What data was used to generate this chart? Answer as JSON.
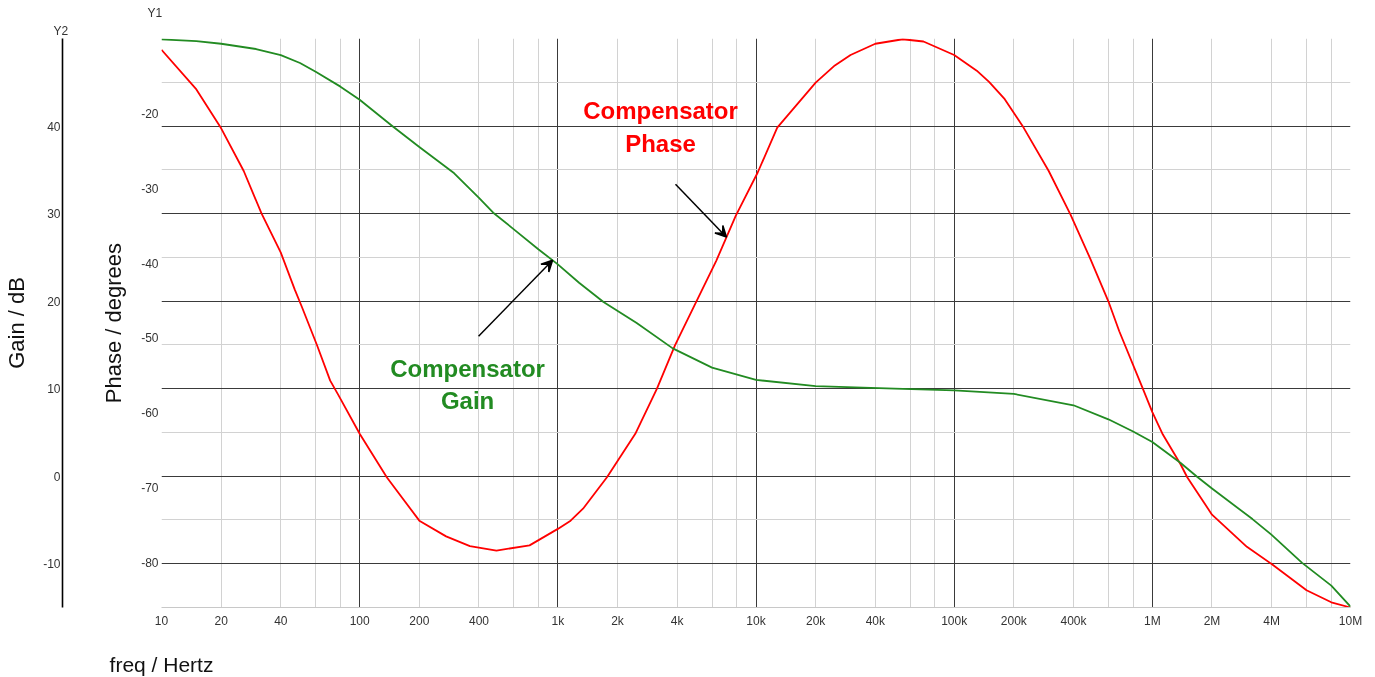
{
  "chart_data": {
    "type": "line",
    "xlabel": "freq / Hertz",
    "ylabel": "Phase / degrees",
    "y2label": "Gain / dB",
    "log": "x",
    "grid": true,
    "xlim": [
      10,
      10000000
    ],
    "xticks": [
      10,
      20,
      40,
      {
        "value": 60,
        "label": null
      },
      {
        "value": 80,
        "label": null
      },
      100,
      200,
      400,
      {
        "value": 600,
        "label": null
      },
      {
        "value": 800,
        "label": null
      },
      {
        "value": 1000,
        "label": "1k"
      },
      {
        "value": 2000,
        "label": "2k"
      },
      {
        "value": 4000,
        "label": "4k"
      },
      {
        "value": 6000,
        "label": null
      },
      {
        "value": 8000,
        "label": null
      },
      {
        "value": 10000,
        "label": "10k"
      },
      {
        "value": 20000,
        "label": "20k"
      },
      {
        "value": 40000,
        "label": "40k"
      },
      {
        "value": 60000,
        "label": null
      },
      {
        "value": 80000,
        "label": null
      },
      {
        "value": 100000,
        "label": "100k"
      },
      {
        "value": 200000,
        "label": "200k"
      },
      {
        "value": 400000,
        "label": "400k"
      },
      {
        "value": 600000,
        "label": null
      },
      {
        "value": 800000,
        "label": null
      },
      {
        "value": 1000000,
        "label": "1M"
      },
      {
        "value": 2000000,
        "label": "2M"
      },
      {
        "value": 4000000,
        "label": "4M"
      },
      {
        "value": 6000000,
        "label": null
      },
      {
        "value": 8000000,
        "label": null
      },
      {
        "value": 10000000,
        "label": "10M"
      }
    ],
    "ylim": [
      -86,
      -10
    ],
    "yticks": [
      -20,
      -30,
      -40,
      -50,
      -60,
      -70,
      -80
    ],
    "y2lim": [
      -15,
      50
    ],
    "y2ticks": [
      -10,
      {
        "value": -5,
        "label": null
      },
      0,
      {
        "value": 5,
        "label": null
      },
      10,
      {
        "value": 15,
        "label": null
      },
      20,
      {
        "value": 25,
        "label": null
      },
      30,
      {
        "value": 35,
        "label": null
      },
      40,
      {
        "value": 45,
        "label": null
      }
    ],
    "annotations": [
      "Y2",
      "Y1"
    ],
    "series": [
      {
        "name": "Compensator Phase",
        "color": "#ff0000",
        "x": [
          10,
          15,
          20,
          26,
          32,
          40,
          47,
          51,
          61,
          71,
          78,
          100,
          137,
          200,
          273,
          360,
          490,
          720,
          1000,
          1160,
          1340,
          1770,
          2460,
          3160,
          3900,
          4900,
          6300,
          7900,
          10200,
          12800,
          20000,
          25000,
          30000,
          40000,
          55000,
          70000,
          100000,
          130000,
          150000,
          180000,
          224000,
          300000,
          386000,
          486000,
          600000,
          681000,
          887000,
          1000000,
          1130000,
          1390000,
          1500000,
          2000000,
          3000000,
          4000000,
          6000000,
          8000000,
          10000000
        ],
        "values": [
          -11.5,
          -16.8,
          -22.0,
          -27.7,
          -33.4,
          -38.6,
          -43.5,
          -45.8,
          -51.0,
          -55.7,
          -57.6,
          -62.8,
          -68.6,
          -74.4,
          -76.5,
          -77.8,
          -78.4,
          -77.7,
          -75.5,
          -74.4,
          -72.8,
          -68.6,
          -62.8,
          -56.8,
          -51.0,
          -45.6,
          -39.7,
          -33.7,
          -27.9,
          -21.9,
          -15.9,
          -13.6,
          -12.2,
          -10.7,
          -10.1,
          -10.4,
          -12.2,
          -14.3,
          -15.8,
          -18.1,
          -21.9,
          -27.7,
          -33.5,
          -39.4,
          -45.1,
          -49.1,
          -56.5,
          -59.9,
          -62.9,
          -66.9,
          -68.6,
          -73.6,
          -77.9,
          -80.2,
          -83.7,
          -85.3,
          -86.0
        ]
      },
      {
        "name": "Compensator Gain",
        "color": "#228b22",
        "axis": "y2",
        "x": [
          10,
          15,
          20,
          30,
          40,
          50,
          60,
          80,
          100,
          146,
          200,
          300,
          400,
          472,
          600,
          800,
          1000,
          1280,
          1700,
          2500,
          3800,
          6000,
          10000,
          20000,
          50000,
          100000,
          200000,
          400000,
          600000,
          800000,
          1000000,
          1390000,
          1670000,
          2000000,
          3200000,
          4000000,
          5700000,
          8000000,
          10000000
        ],
        "values": [
          49.9,
          49.7,
          49.4,
          48.8,
          48.1,
          47.2,
          46.2,
          44.5,
          43.0,
          40.0,
          37.6,
          34.6,
          31.8,
          30.1,
          28.2,
          25.9,
          24.2,
          22.1,
          19.9,
          17.5,
          14.6,
          12.4,
          11.0,
          10.3,
          10.0,
          9.8,
          9.4,
          8.1,
          6.5,
          5.1,
          3.9,
          1.5,
          0.0,
          -1.4,
          -4.9,
          -6.7,
          -9.9,
          -12.5,
          -14.9
        ]
      }
    ]
  }
}
